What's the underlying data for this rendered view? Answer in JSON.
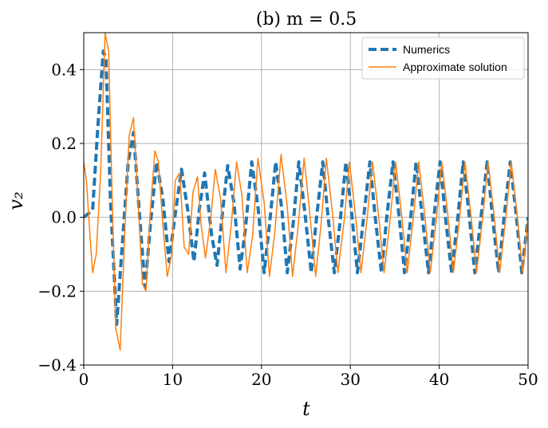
{
  "chart_data": {
    "type": "line",
    "title": "(b)    m = 0.5",
    "xlabel": "t",
    "ylabel": "v₂",
    "xlim": [
      0,
      50
    ],
    "ylim": [
      -0.4,
      0.5
    ],
    "xticks": [
      0,
      10,
      20,
      30,
      40,
      50
    ],
    "xtick_labels": [
      "0",
      "10",
      "20",
      "30",
      "40",
      "50"
    ],
    "yticks": [
      -0.4,
      -0.2,
      0.0,
      0.2,
      0.4
    ],
    "ytick_labels": [
      "−0.4",
      "−0.2",
      "0.0",
      "0.2",
      "0.4"
    ],
    "grid": true,
    "legend_position": "top-right",
    "series": [
      {
        "name": "Numerics",
        "color": "#1f77b4",
        "style": "dashed",
        "x": [
          0,
          1.0,
          1.6,
          2.2,
          2.5,
          3.0,
          3.7,
          4.2,
          5.0,
          5.6,
          6.2,
          6.9,
          7.5,
          8.2,
          8.9,
          9.6,
          10.3,
          11.0,
          11.7,
          12.4,
          13.0,
          13.6,
          14.4,
          15.0,
          15.6,
          16.2,
          16.9,
          17.6,
          18.2,
          18.9,
          19.6,
          20.3,
          20.9,
          21.6,
          22.3,
          22.9,
          23.6,
          24.2,
          24.9,
          25.6,
          26.2,
          26.9,
          27.5,
          28.2,
          28.9,
          29.5,
          30.2,
          30.8,
          31.5,
          32.2,
          32.8,
          33.5,
          34.1,
          34.8,
          35.5,
          36.1,
          36.8,
          37.4,
          38.1,
          38.8,
          39.4,
          40.1,
          40.7,
          41.4,
          42.1,
          42.7,
          43.4,
          44.0,
          44.7,
          45.4,
          46.0,
          46.7,
          47.3,
          48.0,
          48.7,
          49.3,
          50.0
        ],
        "values": [
          0.0,
          0.02,
          0.25,
          0.45,
          0.43,
          0.05,
          -0.29,
          -0.12,
          0.15,
          0.23,
          0.03,
          -0.19,
          -0.02,
          0.15,
          0.05,
          -0.12,
          0.01,
          0.13,
          0.02,
          -0.12,
          0.02,
          0.12,
          -0.05,
          -0.13,
          0.01,
          0.14,
          0.04,
          -0.14,
          -0.03,
          0.15,
          0.03,
          -0.15,
          -0.02,
          0.15,
          0.02,
          -0.15,
          -0.01,
          0.15,
          0.01,
          -0.15,
          0.0,
          0.15,
          0.0,
          -0.15,
          0.0,
          0.15,
          0.0,
          -0.15,
          0.0,
          0.15,
          0.0,
          -0.15,
          0.0,
          0.15,
          0.0,
          -0.15,
          0.0,
          0.15,
          0.0,
          -0.15,
          0.0,
          0.15,
          0.0,
          -0.15,
          0.0,
          0.15,
          0.0,
          -0.15,
          0.0,
          0.15,
          0.0,
          -0.15,
          0.0,
          0.15,
          0.0,
          -0.15,
          0.0
        ]
      },
      {
        "name": "Approximate solution",
        "color": "#ff7f0e",
        "style": "solid",
        "x": [
          0,
          0.3,
          0.7,
          1.0,
          1.4,
          1.9,
          2.4,
          2.8,
          3.2,
          3.6,
          4.1,
          4.6,
          5.1,
          5.6,
          6.1,
          6.6,
          7.0,
          7.5,
          8.0,
          8.4,
          8.9,
          9.4,
          9.9,
          10.3,
          10.8,
          11.3,
          11.8,
          12.3,
          12.8,
          13.2,
          13.7,
          14.3,
          14.8,
          15.4,
          16.0,
          16.6,
          17.2,
          17.8,
          18.4,
          19.0,
          19.6,
          20.3,
          20.9,
          21.5,
          22.2,
          22.9,
          23.5,
          24.1,
          24.8,
          25.4,
          26.1,
          26.7,
          27.3,
          28.0,
          28.6,
          29.3,
          29.9,
          30.6,
          31.2,
          31.9,
          32.5,
          33.2,
          33.8,
          34.5,
          35.1,
          35.8,
          36.4,
          37.1,
          37.7,
          38.4,
          39.0,
          39.7,
          40.3,
          41.0,
          41.6,
          42.3,
          42.9,
          43.6,
          44.2,
          44.9,
          45.5,
          46.2,
          46.8,
          47.5,
          48.1,
          48.8,
          49.4,
          50.0
        ],
        "values": [
          0.15,
          0.1,
          -0.05,
          -0.15,
          -0.1,
          0.12,
          0.5,
          0.45,
          0.05,
          -0.3,
          -0.36,
          -0.05,
          0.22,
          0.27,
          0.05,
          -0.18,
          -0.2,
          0.02,
          0.18,
          0.15,
          -0.02,
          -0.16,
          -0.1,
          0.1,
          0.12,
          -0.08,
          -0.1,
          0.07,
          0.11,
          -0.02,
          -0.11,
          0.0,
          0.13,
          0.05,
          -0.15,
          -0.02,
          0.15,
          0.06,
          -0.15,
          -0.05,
          0.16,
          0.04,
          -0.16,
          -0.04,
          0.17,
          0.03,
          -0.16,
          -0.03,
          0.16,
          0.02,
          -0.16,
          -0.02,
          0.16,
          0.01,
          -0.15,
          -0.01,
          0.15,
          0.0,
          -0.15,
          0.0,
          0.15,
          0.0,
          -0.15,
          0.0,
          0.15,
          0.0,
          -0.15,
          0.0,
          0.15,
          0.0,
          -0.15,
          0.0,
          0.15,
          0.0,
          -0.15,
          0.0,
          0.15,
          0.0,
          -0.15,
          0.0,
          0.15,
          0.0,
          -0.15,
          0.0,
          0.15,
          0.0,
          -0.15,
          0.0
        ]
      }
    ]
  }
}
